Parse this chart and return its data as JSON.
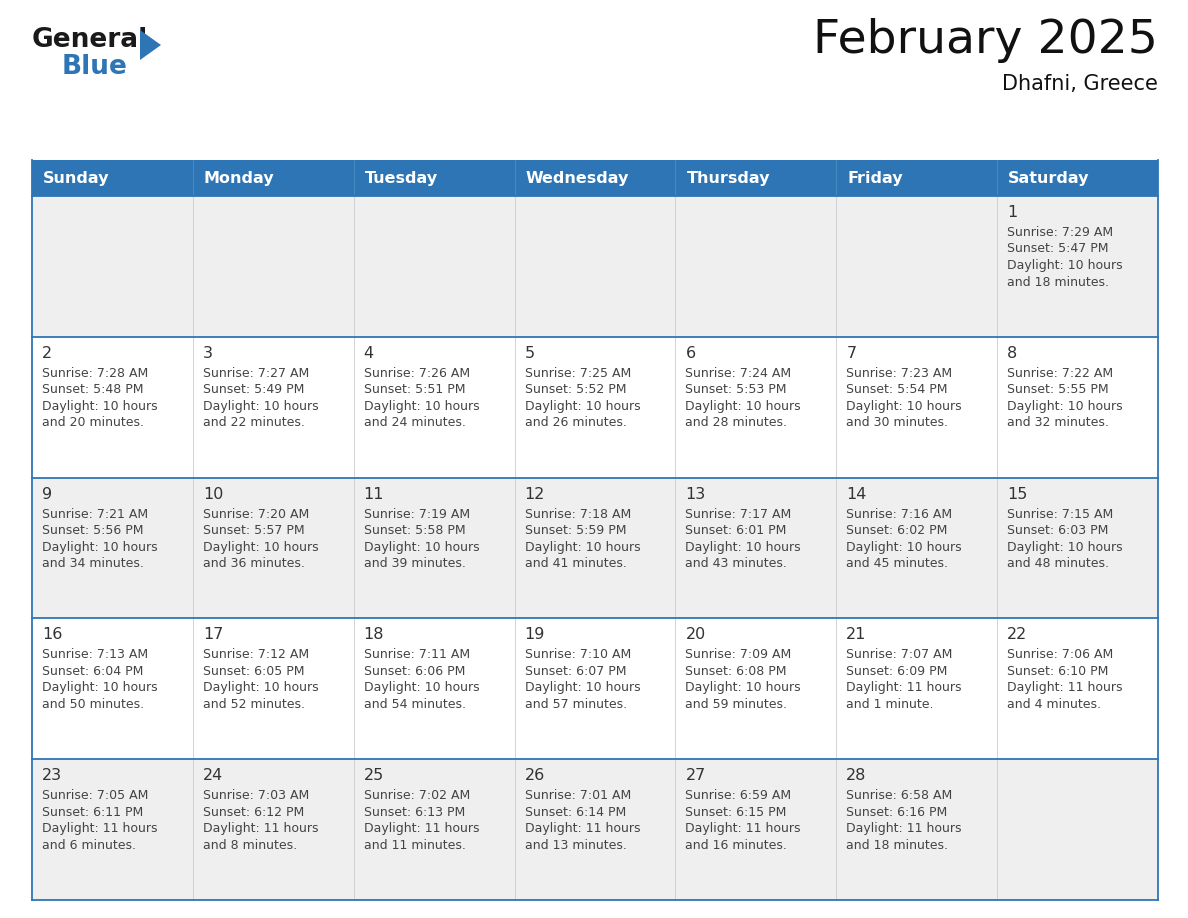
{
  "title": "February 2025",
  "subtitle": "Dhafni, Greece",
  "header_bg": "#2E75B6",
  "header_text_color": "#FFFFFF",
  "day_names": [
    "Sunday",
    "Monday",
    "Tuesday",
    "Wednesday",
    "Thursday",
    "Friday",
    "Saturday"
  ],
  "cell_bg_gray": "#EFEFEF",
  "cell_bg_white": "#FFFFFF",
  "cell_border_color": "#2E75B6",
  "date_text_color": "#333333",
  "info_text_color": "#444444",
  "logo_general_color": "#1A1A1A",
  "logo_blue_color": "#2E75B6",
  "row_backgrounds": [
    "#EFEFEF",
    "#FFFFFF",
    "#EFEFEF",
    "#FFFFFF",
    "#EFEFEF"
  ],
  "calendar": [
    [
      null,
      null,
      null,
      null,
      null,
      null,
      {
        "day": 1,
        "sunrise": "7:29 AM",
        "sunset": "5:47 PM",
        "daylight": "10 hours and 18 minutes."
      }
    ],
    [
      {
        "day": 2,
        "sunrise": "7:28 AM",
        "sunset": "5:48 PM",
        "daylight": "10 hours and 20 minutes."
      },
      {
        "day": 3,
        "sunrise": "7:27 AM",
        "sunset": "5:49 PM",
        "daylight": "10 hours and 22 minutes."
      },
      {
        "day": 4,
        "sunrise": "7:26 AM",
        "sunset": "5:51 PM",
        "daylight": "10 hours and 24 minutes."
      },
      {
        "day": 5,
        "sunrise": "7:25 AM",
        "sunset": "5:52 PM",
        "daylight": "10 hours and 26 minutes."
      },
      {
        "day": 6,
        "sunrise": "7:24 AM",
        "sunset": "5:53 PM",
        "daylight": "10 hours and 28 minutes."
      },
      {
        "day": 7,
        "sunrise": "7:23 AM",
        "sunset": "5:54 PM",
        "daylight": "10 hours and 30 minutes."
      },
      {
        "day": 8,
        "sunrise": "7:22 AM",
        "sunset": "5:55 PM",
        "daylight": "10 hours and 32 minutes."
      }
    ],
    [
      {
        "day": 9,
        "sunrise": "7:21 AM",
        "sunset": "5:56 PM",
        "daylight": "10 hours and 34 minutes."
      },
      {
        "day": 10,
        "sunrise": "7:20 AM",
        "sunset": "5:57 PM",
        "daylight": "10 hours and 36 minutes."
      },
      {
        "day": 11,
        "sunrise": "7:19 AM",
        "sunset": "5:58 PM",
        "daylight": "10 hours and 39 minutes."
      },
      {
        "day": 12,
        "sunrise": "7:18 AM",
        "sunset": "5:59 PM",
        "daylight": "10 hours and 41 minutes."
      },
      {
        "day": 13,
        "sunrise": "7:17 AM",
        "sunset": "6:01 PM",
        "daylight": "10 hours and 43 minutes."
      },
      {
        "day": 14,
        "sunrise": "7:16 AM",
        "sunset": "6:02 PM",
        "daylight": "10 hours and 45 minutes."
      },
      {
        "day": 15,
        "sunrise": "7:15 AM",
        "sunset": "6:03 PM",
        "daylight": "10 hours and 48 minutes."
      }
    ],
    [
      {
        "day": 16,
        "sunrise": "7:13 AM",
        "sunset": "6:04 PM",
        "daylight": "10 hours and 50 minutes."
      },
      {
        "day": 17,
        "sunrise": "7:12 AM",
        "sunset": "6:05 PM",
        "daylight": "10 hours and 52 minutes."
      },
      {
        "day": 18,
        "sunrise": "7:11 AM",
        "sunset": "6:06 PM",
        "daylight": "10 hours and 54 minutes."
      },
      {
        "day": 19,
        "sunrise": "7:10 AM",
        "sunset": "6:07 PM",
        "daylight": "10 hours and 57 minutes."
      },
      {
        "day": 20,
        "sunrise": "7:09 AM",
        "sunset": "6:08 PM",
        "daylight": "10 hours and 59 minutes."
      },
      {
        "day": 21,
        "sunrise": "7:07 AM",
        "sunset": "6:09 PM",
        "daylight": "11 hours and 1 minute."
      },
      {
        "day": 22,
        "sunrise": "7:06 AM",
        "sunset": "6:10 PM",
        "daylight": "11 hours and 4 minutes."
      }
    ],
    [
      {
        "day": 23,
        "sunrise": "7:05 AM",
        "sunset": "6:11 PM",
        "daylight": "11 hours and 6 minutes."
      },
      {
        "day": 24,
        "sunrise": "7:03 AM",
        "sunset": "6:12 PM",
        "daylight": "11 hours and 8 minutes."
      },
      {
        "day": 25,
        "sunrise": "7:02 AM",
        "sunset": "6:13 PM",
        "daylight": "11 hours and 11 minutes."
      },
      {
        "day": 26,
        "sunrise": "7:01 AM",
        "sunset": "6:14 PM",
        "daylight": "11 hours and 13 minutes."
      },
      {
        "day": 27,
        "sunrise": "6:59 AM",
        "sunset": "6:15 PM",
        "daylight": "11 hours and 16 minutes."
      },
      {
        "day": 28,
        "sunrise": "6:58 AM",
        "sunset": "6:16 PM",
        "daylight": "11 hours and 18 minutes."
      },
      null
    ]
  ]
}
